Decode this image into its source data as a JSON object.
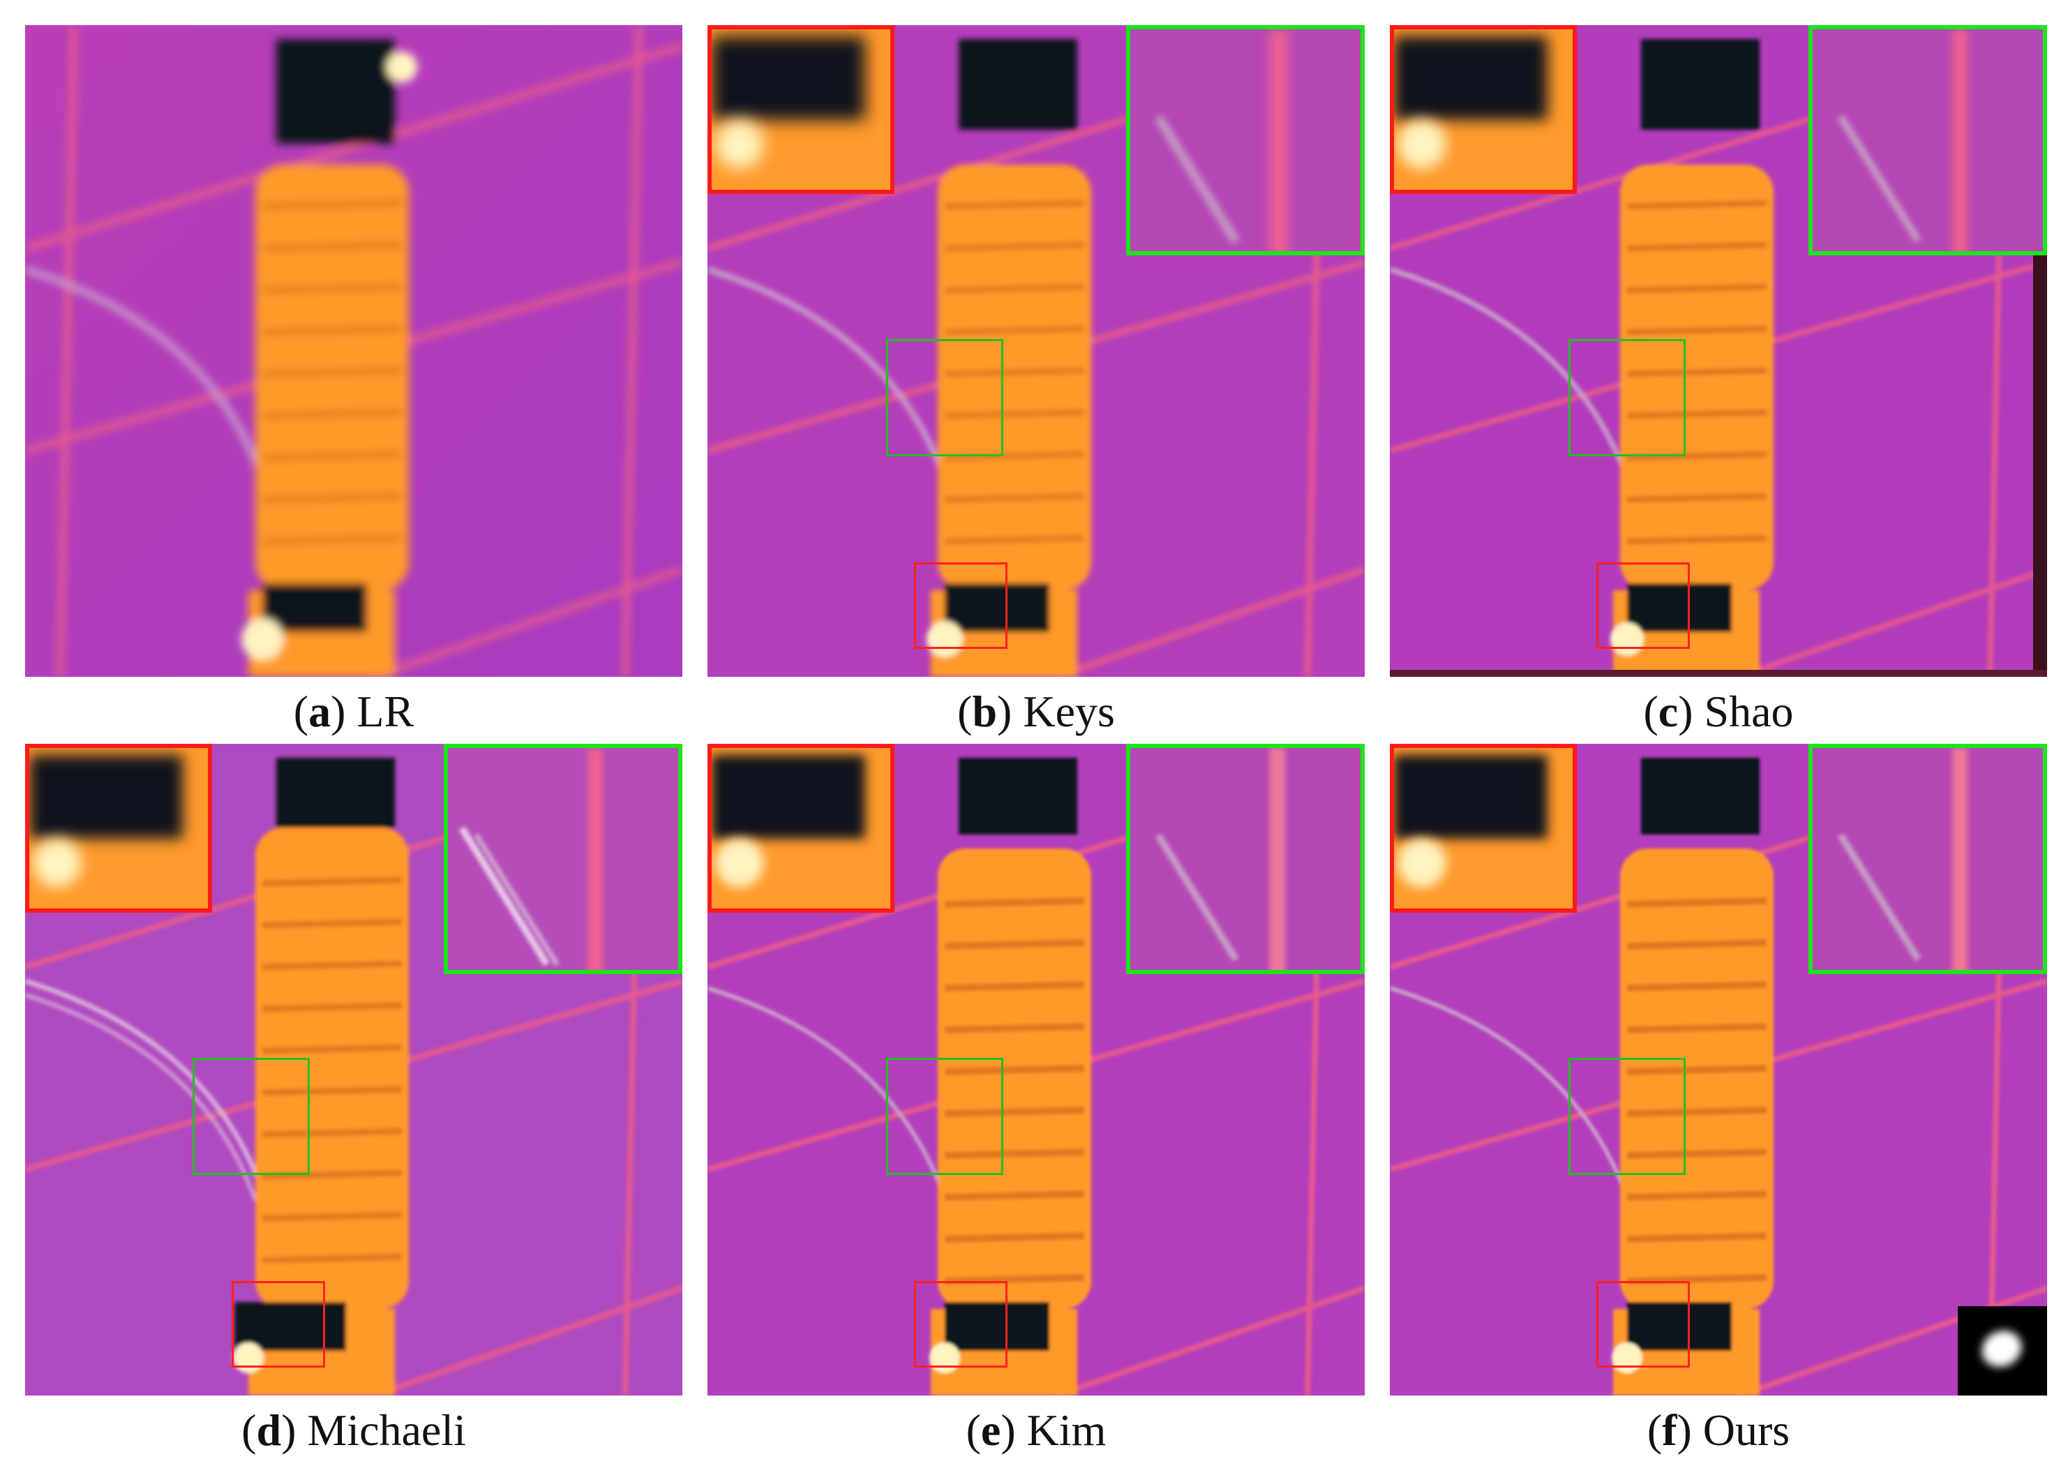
{
  "figure": {
    "panels": [
      {
        "id": "a",
        "letter": "a",
        "method": "LR",
        "insets": false,
        "kernel": false
      },
      {
        "id": "b",
        "letter": "b",
        "method": "Keys",
        "insets": true,
        "kernel": false
      },
      {
        "id": "c",
        "letter": "c",
        "method": "Shao",
        "insets": true,
        "kernel": false
      },
      {
        "id": "d",
        "letter": "d",
        "method": "Michaeli",
        "insets": true,
        "kernel": false
      },
      {
        "id": "e",
        "letter": "e",
        "method": "Kim",
        "insets": true,
        "kernel": false
      },
      {
        "id": "f",
        "letter": "f",
        "method": "Ours",
        "insets": true,
        "kernel": true
      }
    ],
    "colors": {
      "background": "#b63cb0",
      "insulator": "#ff9a2c",
      "highlight": "#fff3c0",
      "dark": "#10141e",
      "grid_line": "#f0607a",
      "red_box": "#ff1a1a",
      "green_box": "#19e619"
    }
  }
}
